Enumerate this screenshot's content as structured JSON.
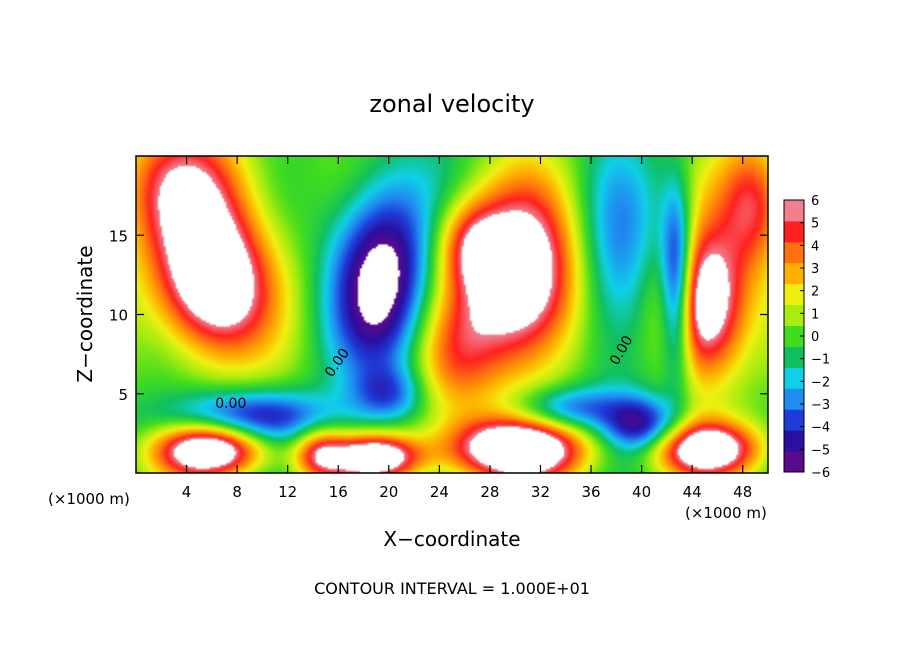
{
  "chart_data": {
    "type": "heatmap",
    "title": "zonal velocity",
    "xlabel": "X−coordinate",
    "ylabel": "Z−coordinate",
    "x_unit_left": "(×1000 m)",
    "x_unit_right": "(×1000 m)",
    "footer": "CONTOUR INTERVAL = 1.000E+01",
    "xlim": [
      0,
      50
    ],
    "ylim": [
      0,
      20
    ],
    "x_ticks": [
      4,
      8,
      12,
      16,
      20,
      24,
      28,
      32,
      36,
      40,
      44,
      48
    ],
    "y_ticks": [
      5,
      10,
      15
    ],
    "colorbar": {
      "min": -6,
      "max": 6,
      "ticks": [
        6,
        5,
        4,
        3,
        2,
        1,
        0,
        -1,
        -2,
        -3,
        -4,
        -5,
        -6
      ],
      "colors": [
        "#5a0a8c",
        "#2a0fa0",
        "#1f3cd8",
        "#1f8cf0",
        "#10d0e8",
        "#10c060",
        "#40dc20",
        "#a8ec10",
        "#f0f010",
        "#ffb000",
        "#ff7010",
        "#ff2020",
        "#f08090"
      ]
    },
    "contour_labels": [
      "0.00",
      "0.00",
      "0.00"
    ],
    "features": [
      {
        "x": 6,
        "z": 12,
        "amp": 9,
        "sx": 3.2,
        "sz": 3.2
      },
      {
        "x": 4,
        "z": 18,
        "amp": 5,
        "sx": 4,
        "sz": 3
      },
      {
        "x": 6,
        "z": 1.5,
        "amp": 9,
        "sx": 3,
        "sz": 1.2
      },
      {
        "x": 14.5,
        "z": 1.2,
        "amp": 5,
        "sx": 1.5,
        "sz": 1.2
      },
      {
        "x": 19,
        "z": 1,
        "amp": 8,
        "sx": 2.5,
        "sz": 1
      },
      {
        "x": 19.5,
        "z": 12.5,
        "amp": -7,
        "sx": 2.8,
        "sz": 4.2
      },
      {
        "x": 20,
        "z": 5,
        "amp": -3,
        "sx": 2,
        "sz": 1.2
      },
      {
        "x": 30.5,
        "z": 12,
        "amp": 9,
        "sx": 3.3,
        "sz": 4
      },
      {
        "x": 26.5,
        "z": 14.5,
        "amp": 4,
        "sx": 2,
        "sz": 2
      },
      {
        "x": 30,
        "z": 1.5,
        "amp": 9,
        "sx": 4,
        "sz": 1.4
      },
      {
        "x": 25,
        "z": 7,
        "amp": 3,
        "sx": 2.5,
        "sz": 3
      },
      {
        "x": 45,
        "z": 10.5,
        "amp": 9,
        "sx": 2.3,
        "sz": 3.3
      },
      {
        "x": 42.8,
        "z": 12,
        "amp": -7,
        "sx": 0.9,
        "sz": 4
      },
      {
        "x": 38,
        "z": 12,
        "amp": -3.5,
        "sx": 2.5,
        "sz": 5
      },
      {
        "x": 45,
        "z": 1.5,
        "amp": 8,
        "sx": 3,
        "sz": 1.2
      },
      {
        "x": 40,
        "z": 3,
        "amp": -5,
        "sx": 2,
        "sz": 1.2
      },
      {
        "x": 49,
        "z": 17,
        "amp": 5,
        "sx": 2,
        "sz": 3
      },
      {
        "x": 9,
        "z": 3.5,
        "amp": -5,
        "sx": 5,
        "sz": 1.2
      },
      {
        "x": 34,
        "z": 4,
        "amp": -4,
        "sx": 3,
        "sz": 1
      }
    ]
  }
}
